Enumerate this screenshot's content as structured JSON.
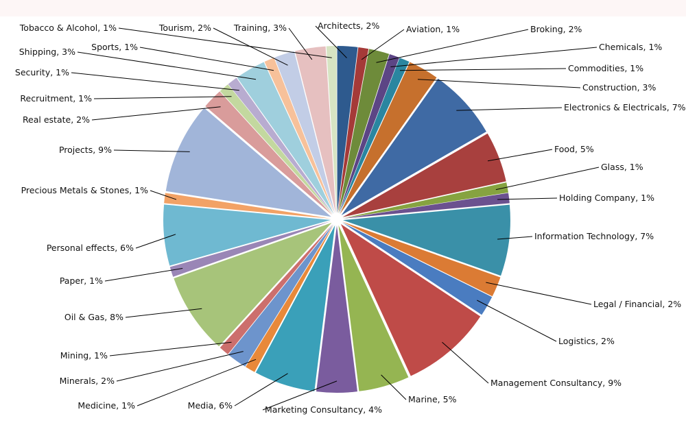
{
  "chart_data": {
    "type": "pie",
    "title": "",
    "series": [
      {
        "values": [
          {
            "label": "Architects",
            "value": 2,
            "text": "Architects, 2%",
            "color": "#2e5a8e"
          },
          {
            "label": "Aviation",
            "value": 1,
            "text": "Aviation, 1%",
            "color": "#a53a38"
          },
          {
            "label": "Broking",
            "value": 2,
            "text": "Broking, 2%",
            "color": "#6e8b3a"
          },
          {
            "label": "Chemicals",
            "value": 1,
            "text": "Chemicals, 1%",
            "color": "#5c4585"
          },
          {
            "label": "Commodities",
            "value": 1,
            "text": "Commodities, 1%",
            "color": "#2a86a0"
          },
          {
            "label": "Construction",
            "value": 3,
            "text": "Construction, 3%",
            "color": "#c6702d"
          },
          {
            "label": "Electronics & Electricals",
            "value": 7,
            "text": "Electronics & Electricals, 7%",
            "color": "#3f6aa4"
          },
          {
            "label": "Food",
            "value": 5,
            "text": "Food, 5%",
            "color": "#a8403e"
          },
          {
            "label": "Glass",
            "value": 1,
            "text": "Glass, 1%",
            "color": "#86a340"
          },
          {
            "label": "Holding Company",
            "value": 1,
            "text": "Holding Company, 1%",
            "color": "#6b518f"
          },
          {
            "label": "Information Technology",
            "value": 7,
            "text": "Information Technology, 7%",
            "color": "#3a90a8"
          },
          {
            "label": "Legal / Financial",
            "value": 2,
            "text": "Legal / Financial, 2%",
            "color": "#db7b34"
          },
          {
            "label": "Logistics",
            "value": 2,
            "text": "Logistics, 2%",
            "color": "#4a7cc0"
          },
          {
            "label": "Management Consultancy",
            "value": 9,
            "text": "Management Consultancy, 9%",
            "color": "#bf4b48"
          },
          {
            "label": "Marine",
            "value": 5,
            "text": "Marine, 5%",
            "color": "#95b552"
          },
          {
            "label": "Marketing Consultancy",
            "value": 4,
            "text": "Marketing Consultancy, 4%",
            "color": "#7a5c9e"
          },
          {
            "label": "Media",
            "value": 6,
            "text": "Media, 6%",
            "color": "#3aa0b9"
          },
          {
            "label": "Medicine",
            "value": 1,
            "text": "Medicine, 1%",
            "color": "#e8893a"
          },
          {
            "label": "Minerals",
            "value": 2,
            "text": "Minerals, 2%",
            "color": "#6d94cc"
          },
          {
            "label": "Mining",
            "value": 1,
            "text": "Mining, 1%",
            "color": "#cc6f6d"
          },
          {
            "label": "Oil & Gas",
            "value": 8,
            "text": "Oil & Gas, 8%",
            "color": "#a7c47a"
          },
          {
            "label": "Paper",
            "value": 1,
            "text": "Paper, 1%",
            "color": "#9a86b6"
          },
          {
            "label": "Personal effects",
            "value": 6,
            "text": "Personal effects, 6%",
            "color": "#6fb9d1"
          },
          {
            "label": "Precious Metals & Stones",
            "value": 1,
            "text": "Precious Metals & Stones, 1%",
            "color": "#f2a266"
          },
          {
            "label": "Projects",
            "value": 9,
            "text": "Projects, 9%",
            "color": "#a1b5d9"
          },
          {
            "label": "Real estate",
            "value": 2,
            "text": "Real estate, 2%",
            "color": "#d99c9b"
          },
          {
            "label": "Recruitment",
            "value": 1,
            "text": "Recruitment, 1%",
            "color": "#c3d89f"
          },
          {
            "label": "Security",
            "value": 1,
            "text": "Security, 1%",
            "color": "#b8acd0"
          },
          {
            "label": "Shipping",
            "value": 3,
            "text": "Shipping, 3%",
            "color": "#9fcfdd"
          },
          {
            "label": "Sports",
            "value": 1,
            "text": "Sports, 1%",
            "color": "#f7c19a"
          },
          {
            "label": "Tourism",
            "value": 2,
            "text": "Tourism, 2%",
            "color": "#c2cde6"
          },
          {
            "label": "Training",
            "value": 3,
            "text": "Training, 3%",
            "color": "#e6c0c0"
          },
          {
            "label": "Tobacco & Alcohol",
            "value": 1,
            "text": "Tobacco & Alcohol, 1%",
            "color": "#d7e4c3"
          }
        ]
      }
    ],
    "legend": "none",
    "data_labels": "outside with leader lines"
  }
}
